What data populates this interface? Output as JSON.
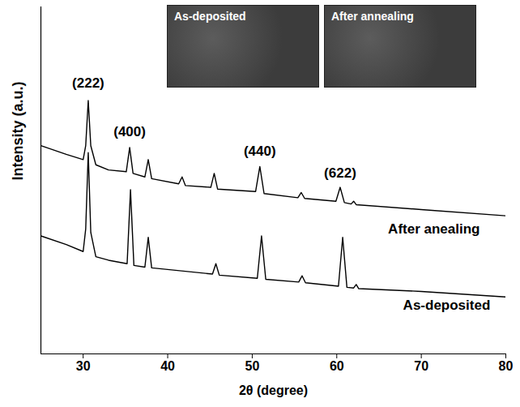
{
  "chart_data": {
    "type": "line",
    "x_label": "2θ (degree)",
    "y_label": "Intensity (a.u.)",
    "xlim": [
      25,
      80
    ],
    "xticks": [
      30,
      40,
      50,
      60,
      70,
      80
    ],
    "ylim": [
      0,
      100
    ],
    "yticks": [],
    "tick_labels": "x",
    "grid": false,
    "series": [
      {
        "name": "After anealing",
        "color": "#000000",
        "label_x": 71.5,
        "label_y": 36,
        "x": [
          25,
          28,
          30,
          30.3,
          30.6,
          30.9,
          31.5,
          33,
          35.1,
          35.5,
          35.9,
          37.3,
          37.7,
          38.1,
          41.3,
          41.7,
          42.1,
          45.1,
          45.5,
          45.9,
          50.4,
          50.9,
          51.4,
          55.4,
          55.8,
          56.2,
          59.9,
          60.4,
          60.9,
          61.7,
          62,
          62.3,
          70,
          80
        ],
        "values": [
          60,
          57.5,
          56,
          60,
          73,
          60,
          54.5,
          53,
          52.5,
          59.5,
          52,
          51,
          56,
          50.5,
          49,
          51,
          48.5,
          48,
          52,
          47.5,
          46.8,
          54,
          46.2,
          45,
          46.5,
          44.8,
          44,
          48,
          43.6,
          43.2,
          44,
          43,
          41.6,
          39.8
        ]
      },
      {
        "name": "As-deposited",
        "color": "#000000",
        "label_x": 73,
        "label_y": 14,
        "x": [
          25,
          28,
          30,
          30.3,
          30.6,
          30.9,
          31.5,
          33,
          35.2,
          35.6,
          36,
          37.3,
          37.7,
          38.1,
          45.3,
          45.7,
          46.1,
          50.6,
          51.1,
          51.6,
          55.5,
          55.9,
          56.3,
          60.2,
          60.7,
          61.2,
          62,
          62.3,
          62.6,
          70,
          80
        ],
        "values": [
          34,
          31.5,
          29.5,
          36,
          58,
          35,
          28,
          27,
          26,
          47.3,
          25.5,
          25,
          33.6,
          24.8,
          23,
          26,
          22.7,
          21.8,
          34,
          21.5,
          20.7,
          22.5,
          20.5,
          19.5,
          33.6,
          19.2,
          19,
          20,
          18.8,
          18,
          16.4
        ]
      }
    ],
    "annotations": [
      {
        "text": "(222)",
        "x": 30.6,
        "y": 78
      },
      {
        "text": "(400)",
        "x": 35.5,
        "y": 64
      },
      {
        "text": "(440)",
        "x": 50.9,
        "y": 58.5
      },
      {
        "text": "(622)",
        "x": 60.4,
        "y": 52
      }
    ],
    "insets": [
      "As-deposited",
      "After annealing"
    ]
  }
}
